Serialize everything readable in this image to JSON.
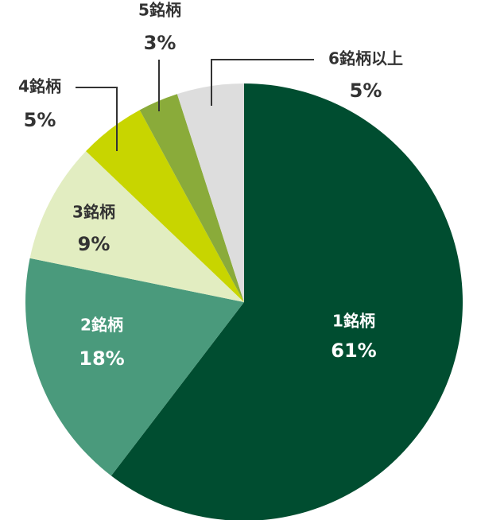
{
  "chart_data": {
    "type": "pie",
    "categories": [
      "1銘柄",
      "2銘柄",
      "3銘柄",
      "4銘柄",
      "5銘柄",
      "6銘柄以上"
    ],
    "values": [
      61,
      18,
      9,
      5,
      3,
      5
    ],
    "value_labels": [
      "61%",
      "18%",
      "9%",
      "5%",
      "3%",
      "5%"
    ],
    "colors": [
      "#004d30",
      "#4a9a7c",
      "#e2edc1",
      "#c8d500",
      "#8aab3a",
      "#dddddd"
    ]
  }
}
